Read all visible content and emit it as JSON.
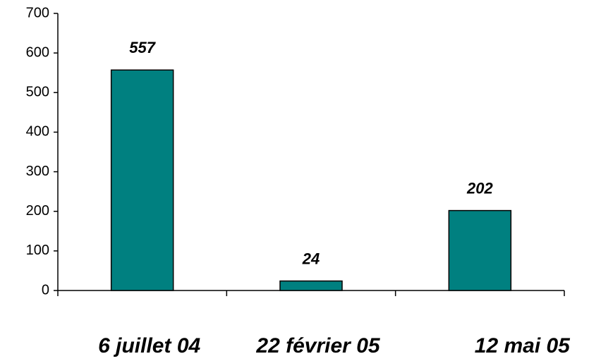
{
  "chart_data": {
    "type": "bar",
    "categories": [
      "6 juillet 04",
      "22 février 05",
      "12 mai 05"
    ],
    "values": [
      557,
      24,
      202
    ],
    "color": "#008080",
    "ylim": [
      0,
      700
    ],
    "yticks": [
      0,
      100,
      200,
      300,
      400,
      500,
      600,
      700
    ]
  }
}
